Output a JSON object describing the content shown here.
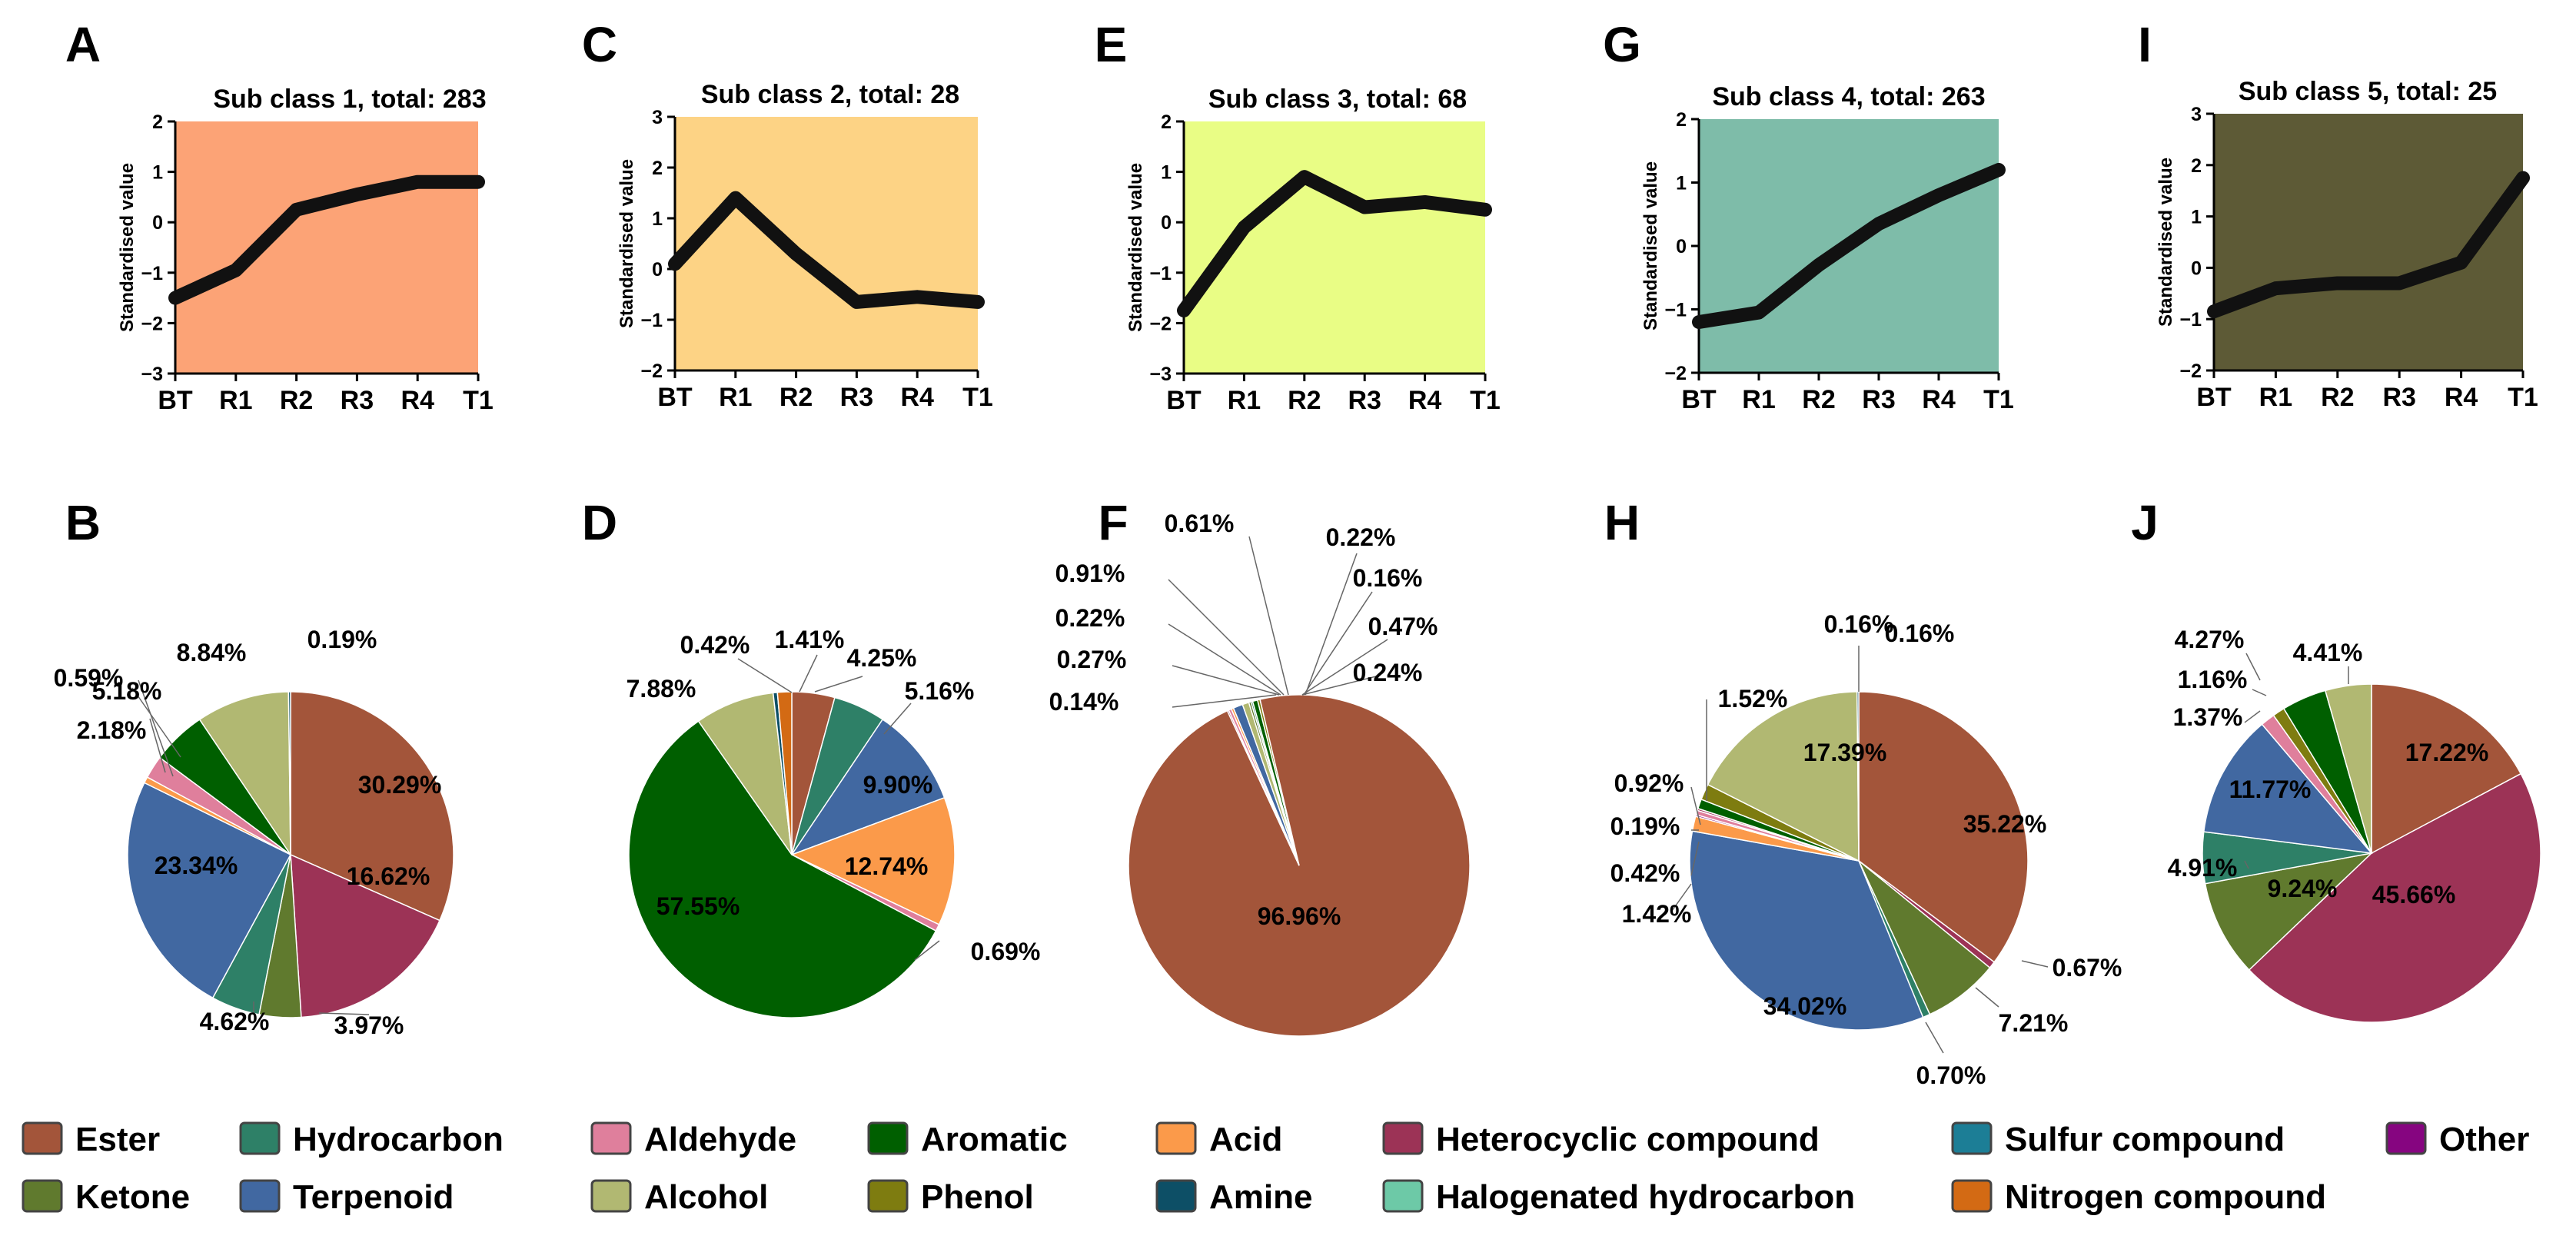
{
  "colors": {
    "Ester": "#a3553a",
    "Ketone": "#607a2e",
    "Hydrocarbon": "#2e8067",
    "Terpenoid": "#4168a1",
    "Aldehyde": "#df7f9c",
    "Alcohol": "#b1b872",
    "Aromatic": "#005f00",
    "Phenol": "#7e7c10",
    "Acid": "#fb9a4a",
    "Amine": "#0d4f66",
    "Heterocyclic compound": "#9c3356",
    "Halogenated hydrocarbon": "#6dc9a7",
    "Sulfur compound": "#1c7e96",
    "Nitrogen compound": "#d36a14",
    "Other": "#860580"
  },
  "legend": [
    "Ester",
    "Hydrocarbon",
    "Aldehyde",
    "Aromatic",
    "Acid",
    "Heterocyclic compound",
    "Sulfur compound",
    "Other",
    "Ketone",
    "Terpenoid",
    "Alcohol",
    "Phenol",
    "Amine",
    "Halogenated hydrocarbon",
    "Nitrogen compound"
  ],
  "chart_data": [
    {
      "panel": "A",
      "type": "line",
      "title": "Sub class 1, total: 283",
      "ylabel": "Standardised value",
      "background": "#fca376",
      "categories": [
        "BT",
        "R1",
        "R2",
        "R3",
        "R4",
        "T1"
      ],
      "yticks": [
        "−3",
        "−2",
        "−1",
        "0",
        "1",
        "2"
      ],
      "ylim": [
        -3,
        2
      ],
      "values": [
        -1.5,
        -0.95,
        0.25,
        0.55,
        0.8,
        0.8
      ]
    },
    {
      "panel": "C",
      "type": "line",
      "title": "Sub class 2, total: 28",
      "ylabel": "Standardised value",
      "background": "#fdd385",
      "categories": [
        "BT",
        "R1",
        "R2",
        "R3",
        "R4",
        "T1"
      ],
      "yticks": [
        "−2",
        "−1",
        "0",
        "1",
        "2",
        "3"
      ],
      "ylim": [
        -2,
        3
      ],
      "values": [
        0.1,
        1.4,
        0.3,
        -0.65,
        -0.55,
        -0.65
      ]
    },
    {
      "panel": "E",
      "type": "line",
      "title": "Sub class 3, total: 68",
      "ylabel": "Standardised value",
      "background": "#e9fd85",
      "categories": [
        "BT",
        "R1",
        "R2",
        "R3",
        "R4",
        "T1"
      ],
      "yticks": [
        "−3",
        "−2",
        "−1",
        "0",
        "1",
        "2"
      ],
      "ylim": [
        -3,
        2
      ],
      "values": [
        -1.75,
        -0.1,
        0.9,
        0.3,
        0.4,
        0.25
      ]
    },
    {
      "panel": "G",
      "type": "line",
      "title": "Sub class 4, total: 263",
      "ylabel": "Standardised value",
      "background": "#7ebca9",
      "categories": [
        "BT",
        "R1",
        "R2",
        "R3",
        "R4",
        "T1"
      ],
      "yticks": [
        "−2",
        "−1",
        "0",
        "1",
        "2"
      ],
      "ylim": [
        -2,
        2
      ],
      "values": [
        -1.2,
        -1.05,
        -0.3,
        0.35,
        0.8,
        1.2
      ]
    },
    {
      "panel": "I",
      "type": "line",
      "title": "Sub class 5, total: 25",
      "ylabel": "Standardised value",
      "background": "#5d5a36",
      "categories": [
        "BT",
        "R1",
        "R2",
        "R3",
        "R4",
        "T1"
      ],
      "yticks": [
        "−2",
        "−1",
        "0",
        "1",
        "2",
        "3"
      ],
      "ylim": [
        -2,
        3
      ],
      "values": [
        -0.85,
        -0.4,
        -0.3,
        -0.3,
        0.1,
        1.75
      ]
    },
    {
      "panel": "B",
      "type": "pie",
      "slices": [
        {
          "label": "30.29%",
          "value": 30.29,
          "cat": "Ester"
        },
        {
          "label": "16.62%",
          "value": 16.62,
          "cat": "Heterocyclic compound"
        },
        {
          "label": "3.97%",
          "value": 3.97,
          "cat": "Ketone"
        },
        {
          "label": "4.62%",
          "value": 4.62,
          "cat": "Hydrocarbon"
        },
        {
          "label": "23.34%",
          "value": 23.34,
          "cat": "Terpenoid"
        },
        {
          "label": "0.59%",
          "value": 0.59,
          "cat": "Acid"
        },
        {
          "label": "2.18%",
          "value": 2.18,
          "cat": "Aldehyde"
        },
        {
          "label": "5.18%",
          "value": 5.18,
          "cat": "Aromatic"
        },
        {
          "label": "8.84%",
          "value": 8.84,
          "cat": "Alcohol"
        },
        {
          "label": "0.19%",
          "value": 0.19,
          "cat": "Amine"
        }
      ]
    },
    {
      "panel": "D",
      "type": "pie",
      "slices": [
        {
          "label": "4.25%",
          "value": 4.25,
          "cat": "Ester"
        },
        {
          "label": "5.16%",
          "value": 5.16,
          "cat": "Hydrocarbon"
        },
        {
          "label": "9.90%",
          "value": 9.9,
          "cat": "Terpenoid"
        },
        {
          "label": "12.74%",
          "value": 12.74,
          "cat": "Acid"
        },
        {
          "label": "0.69%",
          "value": 0.69,
          "cat": "Aldehyde"
        },
        {
          "label": "57.55%",
          "value": 57.55,
          "cat": "Aromatic"
        },
        {
          "label": "7.88%",
          "value": 7.88,
          "cat": "Alcohol"
        },
        {
          "label": "0.42%",
          "value": 0.42,
          "cat": "Amine"
        },
        {
          "label": "1.41%",
          "value": 1.41,
          "cat": "Nitrogen compound"
        }
      ]
    },
    {
      "panel": "F",
      "type": "pie",
      "slices": [
        {
          "label": "0.22%",
          "value": 0.22,
          "cat": "Ketone"
        },
        {
          "label": "0.16%",
          "value": 0.16,
          "cat": "Hydrocarbon"
        },
        {
          "label": "0.47%",
          "value": 0.47,
          "cat": "Aromatic"
        },
        {
          "label": "0.24%",
          "value": 0.24,
          "cat": "Phenol"
        },
        {
          "label": "96.96%",
          "value": 96.96,
          "cat": "Ester"
        },
        {
          "label": "0.14%",
          "value": 0.14,
          "cat": "Heterocyclic compound"
        },
        {
          "label": "0.27%",
          "value": 0.27,
          "cat": "Aldehyde"
        },
        {
          "label": "0.22%",
          "value": 0.22,
          "cat": "Acid"
        },
        {
          "label": "0.91%",
          "value": 0.91,
          "cat": "Terpenoid"
        },
        {
          "label": "0.61%",
          "value": 0.61,
          "cat": "Alcohol"
        }
      ]
    },
    {
      "panel": "H",
      "type": "pie",
      "slices": [
        {
          "label": "35.22%",
          "value": 35.22,
          "cat": "Ester"
        },
        {
          "label": "0.67%",
          "value": 0.67,
          "cat": "Heterocyclic compound"
        },
        {
          "label": "7.21%",
          "value": 7.21,
          "cat": "Ketone"
        },
        {
          "label": "0.70%",
          "value": 0.7,
          "cat": "Hydrocarbon"
        },
        {
          "label": "34.02%",
          "value": 34.02,
          "cat": "Terpenoid"
        },
        {
          "label": "1.42%",
          "value": 1.42,
          "cat": "Acid"
        },
        {
          "label": "0.16%",
          "value": 0.16,
          "cat": "Other"
        },
        {
          "label": "0.42%",
          "value": 0.42,
          "cat": "Aldehyde"
        },
        {
          "label": "0.19%",
          "value": 0.19,
          "cat": "Heterocyclic compound"
        },
        {
          "label": "0.92%",
          "value": 0.92,
          "cat": "Aromatic"
        },
        {
          "label": "1.52%",
          "value": 1.52,
          "cat": "Phenol"
        },
        {
          "label": "17.39%",
          "value": 17.39,
          "cat": "Alcohol"
        },
        {
          "label": "0.16%",
          "value": 0.16,
          "cat": "Amine"
        }
      ]
    },
    {
      "panel": "J",
      "type": "pie",
      "slices": [
        {
          "label": "17.22%",
          "value": 17.22,
          "cat": "Ester"
        },
        {
          "label": "45.66%",
          "value": 45.66,
          "cat": "Heterocyclic compound"
        },
        {
          "label": "9.24%",
          "value": 9.24,
          "cat": "Ketone"
        },
        {
          "label": "4.91%",
          "value": 4.91,
          "cat": "Hydrocarbon"
        },
        {
          "label": "11.77%",
          "value": 11.77,
          "cat": "Terpenoid"
        },
        {
          "label": "1.37%",
          "value": 1.37,
          "cat": "Aldehyde"
        },
        {
          "label": "1.16%",
          "value": 1.16,
          "cat": "Phenol"
        },
        {
          "label": "4.27%",
          "value": 4.27,
          "cat": "Aromatic"
        },
        {
          "label": "4.41%",
          "value": 4.41,
          "cat": "Alcohol"
        }
      ]
    }
  ]
}
